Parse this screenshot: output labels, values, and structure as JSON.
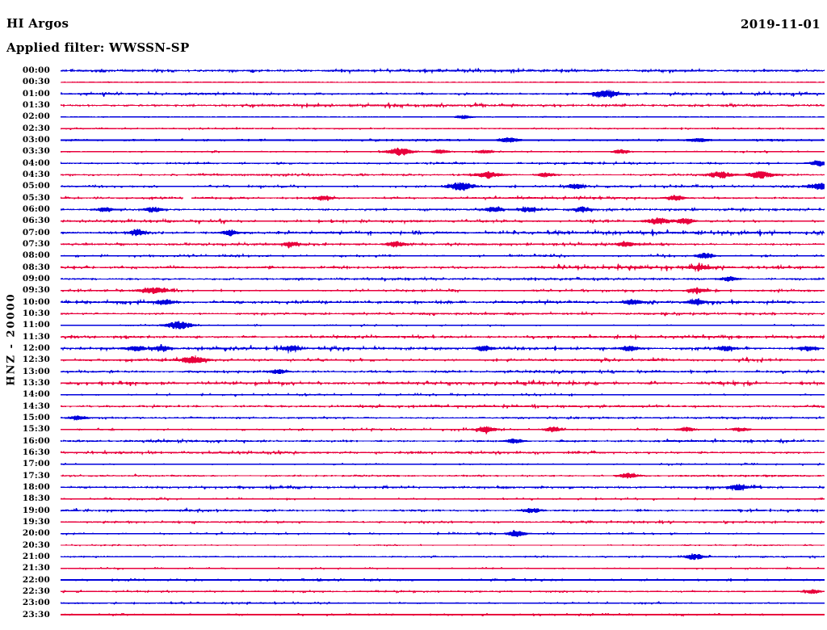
{
  "header": {
    "station": "HI Argos",
    "date": "2019-11-01",
    "filter_line": "Applied filter: WWSSN-SP"
  },
  "chart_data": {
    "type": "line",
    "subtype": "helicorder-seismogram",
    "title": "HI Argos",
    "date": "2019-11-01",
    "filter": "WWSSN-SP",
    "channel_scale_label": "HNZ - 20000",
    "row_span_minutes": 30,
    "first_row_time": "00:00",
    "last_row_time": "23:30",
    "grid": false,
    "colors": {
      "even_trace": "#0000dd",
      "odd_trace": "#e8003c",
      "text": "#000000",
      "background": "#ffffff"
    },
    "rows": [
      {
        "time": "00:00",
        "color": "blue",
        "noise": 1.9,
        "events": []
      },
      {
        "time": "00:30",
        "color": "red",
        "noise": 0.4,
        "events": []
      },
      {
        "time": "01:00",
        "color": "blue",
        "noise": 1.7,
        "events": [
          {
            "x": 0.713,
            "amp": 4
          }
        ]
      },
      {
        "time": "01:30",
        "color": "red",
        "noise": 1.9,
        "events": []
      },
      {
        "time": "02:00",
        "color": "blue",
        "noise": 0.5,
        "events": [
          {
            "x": 0.528,
            "amp": 2
          }
        ]
      },
      {
        "time": "02:30",
        "color": "red",
        "noise": 0.9,
        "events": []
      },
      {
        "time": "03:00",
        "color": "blue",
        "noise": 1.0,
        "thick": true,
        "events": [
          {
            "x": 0.587,
            "amp": 2.5
          },
          {
            "x": 0.835,
            "amp": 2
          }
        ]
      },
      {
        "time": "03:30",
        "color": "red",
        "noise": 0.8,
        "events": [
          {
            "x": 0.444,
            "amp": 5
          },
          {
            "x": 0.497,
            "amp": 2.5
          },
          {
            "x": 0.555,
            "amp": 2
          },
          {
            "x": 0.735,
            "amp": 2.5
          }
        ]
      },
      {
        "time": "04:00",
        "color": "blue",
        "noise": 1.7,
        "events": [
          {
            "x": 0.993,
            "amp": 3
          }
        ]
      },
      {
        "time": "04:30",
        "color": "red",
        "noise": 1.4,
        "events": [
          {
            "x": 0.56,
            "amp": 4
          },
          {
            "x": 0.636,
            "amp": 3
          },
          {
            "x": 0.864,
            "amp": 4.5
          },
          {
            "x": 0.917,
            "amp": 4.5
          }
        ]
      },
      {
        "time": "05:00",
        "color": "blue",
        "noise": 1.7,
        "events": [
          {
            "x": 0.523,
            "amp": 5
          },
          {
            "x": 0.673,
            "amp": 3
          },
          {
            "x": 0.995,
            "amp": 4
          }
        ]
      },
      {
        "time": "05:30",
        "color": "red",
        "noise": 1.6,
        "gaps": [
          [
            0.161,
            0.171
          ]
        ],
        "events": [
          {
            "x": 0.344,
            "amp": 3
          },
          {
            "x": 0.804,
            "amp": 3
          }
        ]
      },
      {
        "time": "06:00",
        "color": "blue",
        "noise": 1.7,
        "events": [
          {
            "x": 0.058,
            "amp": 2.5
          },
          {
            "x": 0.122,
            "amp": 3
          },
          {
            "x": 0.566,
            "amp": 3
          },
          {
            "x": 0.613,
            "amp": 2.5
          },
          {
            "x": 0.682,
            "amp": 3
          }
        ]
      },
      {
        "time": "06:30",
        "color": "red",
        "noise": 1.7,
        "events": [
          {
            "x": 0.782,
            "amp": 4
          },
          {
            "x": 0.819,
            "amp": 3.5
          }
        ]
      },
      {
        "time": "07:00",
        "color": "blue",
        "noise": 2.2,
        "events": [
          {
            "x": 0.1,
            "amp": 3
          },
          {
            "x": 0.222,
            "amp": 3.5
          }
        ]
      },
      {
        "time": "07:30",
        "color": "red",
        "noise": 1.5,
        "events": [
          {
            "x": 0.301,
            "amp": 2.5
          },
          {
            "x": 0.439,
            "amp": 3.5
          },
          {
            "x": 0.74,
            "amp": 3
          }
        ]
      },
      {
        "time": "08:00",
        "color": "blue",
        "noise": 1.6,
        "events": [
          {
            "x": 0.844,
            "amp": 3.5
          }
        ]
      },
      {
        "time": "08:30",
        "color": "red",
        "noise": 2.3,
        "events": [
          {
            "x": 0.838,
            "amp": 3
          }
        ]
      },
      {
        "time": "09:00",
        "color": "blue",
        "noise": 1.4,
        "events": [
          {
            "x": 0.875,
            "amp": 3
          }
        ]
      },
      {
        "time": "09:30",
        "color": "red",
        "noise": 1.5,
        "events": [
          {
            "x": 0.122,
            "amp": 4
          },
          {
            "x": 0.833,
            "amp": 3
          }
        ]
      },
      {
        "time": "10:00",
        "color": "blue",
        "noise": 2.0,
        "events": [
          {
            "x": 0.137,
            "amp": 3
          },
          {
            "x": 0.748,
            "amp": 3.5
          },
          {
            "x": 0.832,
            "amp": 3
          }
        ]
      },
      {
        "time": "10:30",
        "color": "red",
        "noise": 1.4,
        "events": []
      },
      {
        "time": "11:00",
        "color": "blue",
        "noise": 0.9,
        "events": [
          {
            "x": 0.155,
            "amp": 5
          }
        ]
      },
      {
        "time": "11:30",
        "color": "red",
        "noise": 2.0,
        "events": []
      },
      {
        "time": "12:00",
        "color": "blue",
        "noise": 2.1,
        "events": [
          {
            "x": 0.1,
            "amp": 3
          },
          {
            "x": 0.132,
            "amp": 3
          },
          {
            "x": 0.301,
            "amp": 3
          },
          {
            "x": 0.555,
            "amp": 3.5
          },
          {
            "x": 0.745,
            "amp": 3.5
          },
          {
            "x": 0.872,
            "amp": 3
          },
          {
            "x": 0.978,
            "amp": 3
          }
        ]
      },
      {
        "time": "12:30",
        "color": "red",
        "noise": 1.9,
        "events": [
          {
            "x": 0.174,
            "amp": 4
          }
        ]
      },
      {
        "time": "13:00",
        "color": "blue",
        "noise": 1.8,
        "events": [
          {
            "x": 0.285,
            "amp": 3
          }
        ]
      },
      {
        "time": "13:30",
        "color": "red",
        "noise": 2.3,
        "events": []
      },
      {
        "time": "14:00",
        "color": "blue",
        "noise": 1.1,
        "events": []
      },
      {
        "time": "14:30",
        "color": "red",
        "noise": 1.6,
        "events": []
      },
      {
        "time": "15:00",
        "color": "blue",
        "noise": 1.1,
        "events": [
          {
            "x": 0.023,
            "amp": 2.5
          }
        ]
      },
      {
        "time": "15:30",
        "color": "red",
        "noise": 1.4,
        "events": [
          {
            "x": 0.558,
            "amp": 3.5
          },
          {
            "x": 0.645,
            "amp": 3
          },
          {
            "x": 0.819,
            "amp": 2.5
          },
          {
            "x": 0.89,
            "amp": 2.5
          }
        ]
      },
      {
        "time": "16:00",
        "color": "blue",
        "noise": 1.5,
        "events": [
          {
            "x": 0.594,
            "amp": 3
          }
        ]
      },
      {
        "time": "16:30",
        "color": "red",
        "noise": 1.7,
        "events": []
      },
      {
        "time": "17:00",
        "color": "blue",
        "noise": 1.1,
        "events": []
      },
      {
        "time": "17:30",
        "color": "red",
        "noise": 1.2,
        "events": [
          {
            "x": 0.743,
            "amp": 3.5
          }
        ]
      },
      {
        "time": "18:00",
        "color": "blue",
        "noise": 1.6,
        "events": [
          {
            "x": 0.886,
            "amp": 3.5
          }
        ]
      },
      {
        "time": "18:30",
        "color": "red",
        "noise": 1.1,
        "events": []
      },
      {
        "time": "19:00",
        "color": "blue",
        "noise": 1.6,
        "events": [
          {
            "x": 0.618,
            "amp": 3.5
          }
        ]
      },
      {
        "time": "19:30",
        "color": "red",
        "noise": 1.3,
        "events": []
      },
      {
        "time": "20:00",
        "color": "blue",
        "noise": 1.4,
        "events": [
          {
            "x": 0.597,
            "amp": 3.5
          }
        ]
      },
      {
        "time": "20:30",
        "color": "red",
        "noise": 0.7,
        "events": []
      },
      {
        "time": "21:00",
        "color": "blue",
        "noise": 1.1,
        "events": [
          {
            "x": 0.83,
            "amp": 3.5
          }
        ]
      },
      {
        "time": "21:30",
        "color": "red",
        "noise": 1.0,
        "events": []
      },
      {
        "time": "22:00",
        "color": "blue",
        "noise": 0.7,
        "thick": true,
        "events": []
      },
      {
        "time": "22:30",
        "color": "red",
        "noise": 1.1,
        "events": [
          {
            "x": 0.983,
            "amp": 2.5
          }
        ]
      },
      {
        "time": "23:00",
        "color": "blue",
        "noise": 1.2,
        "events": []
      },
      {
        "time": "23:30",
        "color": "red",
        "noise": 0.7,
        "thick": true,
        "events": []
      }
    ]
  }
}
